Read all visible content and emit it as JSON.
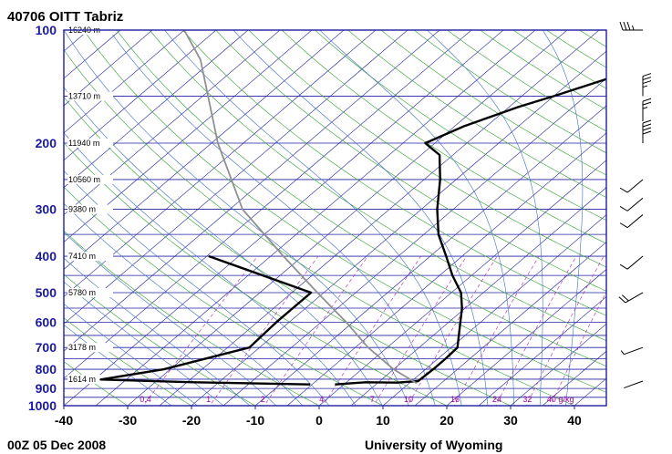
{
  "title": "40706 OITT Tabriz",
  "footer_left": "00Z 05 Dec 2008",
  "footer_right": "University of Wyoming",
  "colors": {
    "frame": "#2020a0",
    "isobar": "#2020a0",
    "isotherm": "#2020a0",
    "dry_adiabat": "#2ea02e",
    "moist_adiabat": "#3a6fc0",
    "mixing_ratio": "#b020b0",
    "parcel": "#909090",
    "sounding": "#000000"
  },
  "chart_data": {
    "type": "line",
    "title": "40706 OITT Tabriz",
    "xlim": [
      -40,
      45
    ],
    "x_ticks": [
      "-40",
      "-30",
      "-20",
      "-10",
      "0",
      "10",
      "20",
      "30",
      "40"
    ],
    "y_scale": "log",
    "ylim": [
      1000,
      100
    ],
    "y_ticks": [
      "100",
      "200",
      "300",
      "400",
      "500",
      "600",
      "700",
      "800",
      "900",
      "1000"
    ],
    "height_labels": [
      {
        "p": 100,
        "label": "16240 m"
      },
      {
        "p": 150,
        "label": "13710 m"
      },
      {
        "p": 200,
        "label": "11940 m"
      },
      {
        "p": 250,
        "label": "10560 m"
      },
      {
        "p": 300,
        "label": "9380 m"
      },
      {
        "p": 400,
        "label": "7410 m"
      },
      {
        "p": 500,
        "label": "5780 m"
      },
      {
        "p": 700,
        "label": "3178 m"
      },
      {
        "p": 850,
        "label": "1614 m"
      }
    ],
    "mixing_ratio_labels": [
      "0.4",
      "1",
      "2",
      "4",
      "7",
      "10",
      "16",
      "24",
      "32",
      "40 g/kg"
    ],
    "series": [
      {
        "name": "",
        "role": "temperature",
        "points": [
          [
            -1.4,
            878
          ],
          [
            3.0,
            866
          ],
          [
            8.0,
            868
          ],
          [
            11.0,
            860
          ],
          [
            11.2,
            800
          ],
          [
            11.2,
            750
          ],
          [
            11.0,
            700
          ],
          [
            9.0,
            650
          ],
          [
            4.5,
            550
          ],
          [
            1.5,
            500
          ],
          [
            -3.0,
            450
          ],
          [
            -7.5,
            400
          ],
          [
            -12.7,
            350
          ],
          [
            -17.5,
            300
          ],
          [
            -22.5,
            250
          ],
          [
            -27.1,
            215
          ],
          [
            -31.5,
            200
          ],
          [
            -28.5,
            180
          ],
          [
            -23.5,
            160
          ],
          [
            -20.0,
            150
          ],
          [
            -13.0,
            130
          ],
          [
            -7.8,
            115
          ],
          [
            -5.3,
            100
          ]
        ]
      },
      {
        "name": "",
        "role": "dewpoint",
        "points": [
          [
            -5.3,
            878
          ],
          [
            -24.0,
            866
          ],
          [
            -39.0,
            852
          ],
          [
            -31.0,
            800
          ],
          [
            -21.6,
            700
          ],
          [
            -22.0,
            600
          ],
          [
            -22.0,
            500
          ],
          [
            -44.7,
            400
          ]
        ]
      },
      {
        "name": "",
        "role": "parcel",
        "points": [
          [
            11.2,
            872
          ],
          [
            5.0,
            800
          ],
          [
            -3.0,
            700
          ],
          [
            -11.0,
            600
          ],
          [
            -21.0,
            500
          ],
          [
            -33.0,
            400
          ],
          [
            -48.0,
            300
          ],
          [
            -64.0,
            200
          ],
          [
            -82.0,
            120
          ],
          [
            -90.0,
            100
          ]
        ]
      }
    ],
    "wind_barbs": [
      {
        "p": 100,
        "dir_deg": 270,
        "speed_kt": 35
      },
      {
        "p": 150,
        "dir_deg": 0,
        "speed_kt": 35
      },
      {
        "p": 175,
        "dir_deg": 0,
        "speed_kt": 25
      },
      {
        "p": 200,
        "dir_deg": 0,
        "speed_kt": 40
      },
      {
        "p": 250,
        "dir_deg": 230,
        "speed_kt": 10
      },
      {
        "p": 280,
        "dir_deg": 230,
        "speed_kt": 10
      },
      {
        "p": 310,
        "dir_deg": 230,
        "speed_kt": 10
      },
      {
        "p": 400,
        "dir_deg": 230,
        "speed_kt": 10
      },
      {
        "p": 500,
        "dir_deg": 240,
        "speed_kt": 20
      },
      {
        "p": 700,
        "dir_deg": 250,
        "speed_kt": 5
      },
      {
        "p": 860,
        "dir_deg": 250,
        "speed_kt": 0
      }
    ]
  }
}
